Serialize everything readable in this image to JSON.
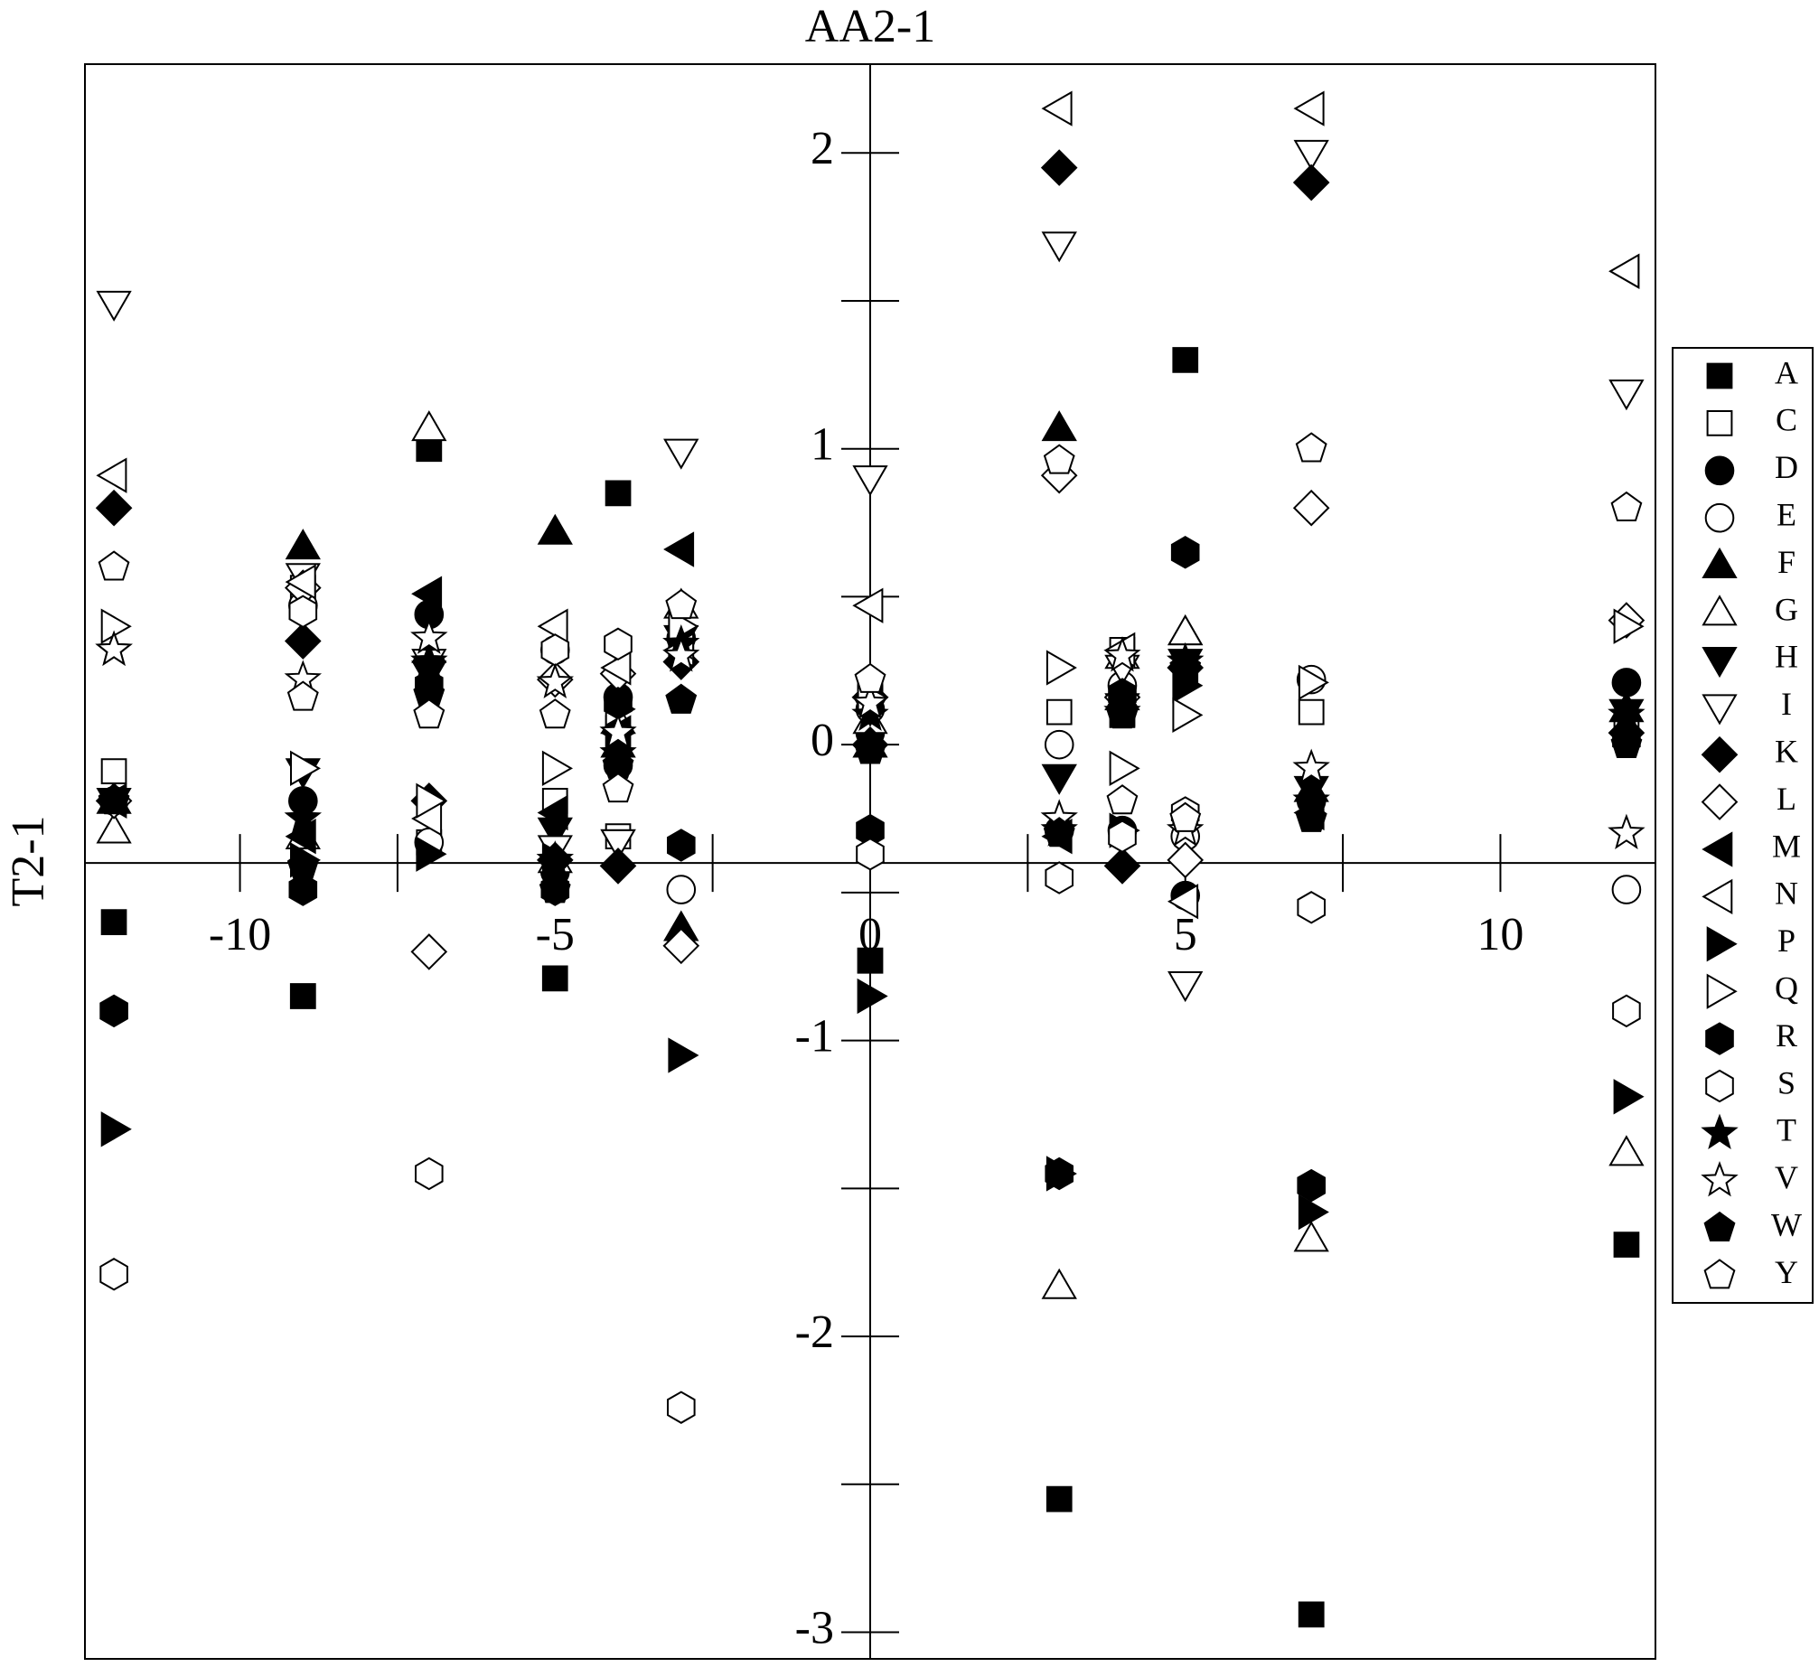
{
  "chart_data": {
    "type": "scatter",
    "title": "AA2-1",
    "y_label": "T2-1",
    "xlim": [
      -12.46,
      12.46
    ],
    "ylim": [
      -3.09,
      2.3
    ],
    "xticks": [
      -10,
      -5,
      0,
      5,
      10
    ],
    "xminorticks": [
      -7.5,
      -2.5,
      2.5,
      7.5
    ],
    "yticks": [
      2,
      1,
      0,
      -1,
      -2,
      -3
    ],
    "yminorticks": [
      1.5,
      0.5,
      -0.5,
      -1.5,
      -2.5
    ],
    "x_axis_crosses_at": -0.4,
    "y_axis_crosses_at": 0,
    "legend": "right",
    "x": [
      -12,
      -9,
      -7,
      -5,
      -4,
      -3,
      0,
      3,
      4,
      5,
      7,
      12
    ],
    "series": [
      {
        "name": "A",
        "marker": "square",
        "filled": true,
        "color": "#000000",
        "values": [
          -0.6,
          -0.85,
          1.0,
          -0.79,
          0.85,
          0.35,
          -0.73,
          -2.55,
          0.1,
          1.3,
          -2.94,
          -1.69
        ]
      },
      {
        "name": "C",
        "marker": "square",
        "filled": false,
        "color": "#000000",
        "values": [
          -0.09,
          0.53,
          -0.33,
          -0.19,
          -0.31,
          0.32,
          0.16,
          0.11,
          0.32,
          -0.29,
          0.11,
          0.06
        ]
      },
      {
        "name": "D",
        "marker": "circle",
        "filled": true,
        "color": "#000000",
        "values": [
          -0.19,
          -0.19,
          0.44,
          -0.43,
          0.16,
          0.36,
          0.04,
          -0.29,
          -0.29,
          -0.51,
          -0.19,
          0.21
        ]
      },
      {
        "name": "E",
        "marker": "circle",
        "filled": false,
        "color": "#000000",
        "values": [
          -0.19,
          0.47,
          -0.33,
          0.32,
          -0.07,
          -0.49,
          0.12,
          0.0,
          0.2,
          -0.31,
          0.22,
          -0.49
        ]
      },
      {
        "name": "F",
        "marker": "triangle-up",
        "filled": true,
        "color": "#000000",
        "values": [
          -0.19,
          0.67,
          0.32,
          0.72,
          0.0,
          -0.62,
          0.0,
          1.07,
          0.16,
          0.38,
          -0.15,
          0.12
        ]
      },
      {
        "name": "G",
        "marker": "triangle-up",
        "filled": false,
        "color": "#000000",
        "values": [
          -0.29,
          -0.31,
          1.07,
          -0.39,
          0.08,
          0.47,
          0.08,
          -1.83,
          0.3,
          0.38,
          -1.67,
          -1.38
        ]
      },
      {
        "name": "H",
        "marker": "triangle-down",
        "filled": true,
        "color": "#000000",
        "values": [
          -0.19,
          -0.09,
          0.24,
          -0.29,
          -0.33,
          0.36,
          0.12,
          -0.11,
          0.13,
          0.28,
          -0.15,
          0.11
        ]
      },
      {
        "name": "I",
        "marker": "triangle-down",
        "filled": false,
        "color": "#000000",
        "values": [
          1.49,
          0.57,
          0.28,
          -0.35,
          -0.33,
          0.99,
          0.9,
          1.69,
          0.26,
          -0.81,
          2.0,
          1.19
        ]
      },
      {
        "name": "K",
        "marker": "diamond",
        "filled": true,
        "color": "#000000",
        "values": [
          0.8,
          0.35,
          -0.19,
          -0.39,
          -0.41,
          0.28,
          0.0,
          1.95,
          -0.41,
          0.26,
          1.9,
          0.04
        ]
      },
      {
        "name": "L",
        "marker": "diamond",
        "filled": false,
        "color": "#000000",
        "values": [
          -0.19,
          0.53,
          -0.7,
          0.22,
          0.24,
          -0.68,
          0.16,
          0.91,
          0.16,
          -0.39,
          0.8,
          0.42
        ]
      },
      {
        "name": "M",
        "marker": "triangle-left",
        "filled": true,
        "color": "#000000",
        "values": [
          -0.19,
          -0.31,
          0.51,
          -0.23,
          0.04,
          0.66,
          0.16,
          -0.31,
          0.12,
          0.26,
          -0.23,
          1.6
        ]
      },
      {
        "name": "N",
        "marker": "triangle-left",
        "filled": false,
        "color": "#000000",
        "values": [
          0.91,
          0.55,
          -0.25,
          0.4,
          0.26,
          0.32,
          0.47,
          2.15,
          0.32,
          -0.53,
          2.15,
          1.6
        ]
      },
      {
        "name": "P",
        "marker": "triangle-right",
        "filled": true,
        "color": "#000000",
        "values": [
          -1.3,
          -0.39,
          -0.37,
          -0.39,
          0.04,
          -1.05,
          -0.85,
          -1.45,
          -0.29,
          0.2,
          -1.58,
          -1.19
        ]
      },
      {
        "name": "Q",
        "marker": "triangle-right",
        "filled": false,
        "color": "#000000",
        "values": [
          0.4,
          -0.08,
          -0.19,
          -0.08,
          0.12,
          0.4,
          0.16,
          0.26,
          -0.08,
          0.1,
          0.21,
          0.4
        ]
      },
      {
        "name": "R",
        "marker": "hexagon",
        "filled": true,
        "color": "#000000",
        "values": [
          -0.9,
          -0.49,
          0.2,
          -0.49,
          0.14,
          -0.34,
          -0.29,
          -1.45,
          0.17,
          0.65,
          -1.49,
          0.02
        ]
      },
      {
        "name": "S",
        "marker": "hexagon",
        "filled": false,
        "color": "#000000",
        "values": [
          -1.79,
          0.45,
          -1.45,
          0.32,
          0.34,
          -2.24,
          -0.37,
          -0.45,
          -0.31,
          -0.23,
          -0.55,
          -0.9
        ]
      },
      {
        "name": "T",
        "marker": "star",
        "filled": true,
        "color": "#000000",
        "values": [
          0.32,
          -0.25,
          0.28,
          -0.39,
          -0.03,
          0.34,
          0.1,
          -0.29,
          0.11,
          0.28,
          -0.19,
          0.1
        ]
      },
      {
        "name": "V",
        "marker": "star",
        "filled": false,
        "color": "#000000",
        "values": [
          0.32,
          0.22,
          0.36,
          0.21,
          0.04,
          0.3,
          0.14,
          -0.25,
          0.3,
          -0.29,
          -0.08,
          -0.3
        ]
      },
      {
        "name": "W",
        "marker": "pentagon",
        "filled": true,
        "color": "#000000",
        "values": [
          -0.19,
          -0.41,
          0.17,
          -0.49,
          -0.07,
          0.15,
          -0.02,
          -0.3,
          0.1,
          0.26,
          -0.25,
          0.0
        ]
      },
      {
        "name": "Y",
        "marker": "pentagon",
        "filled": false,
        "color": "#000000",
        "values": [
          0.6,
          0.16,
          0.1,
          0.1,
          -0.15,
          0.47,
          0.22,
          0.96,
          -0.19,
          -0.25,
          1.0,
          0.8
        ]
      }
    ]
  }
}
